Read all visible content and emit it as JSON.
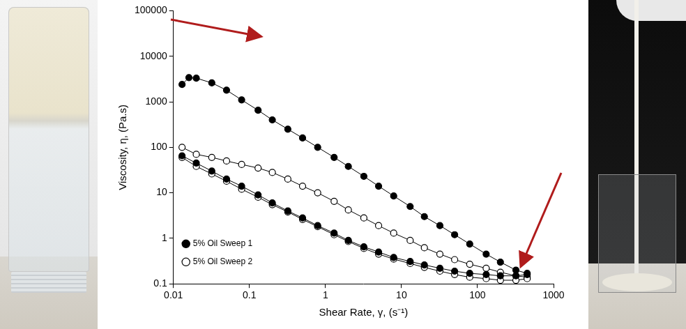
{
  "chart_data": {
    "type": "scatter",
    "x_label": "Shear Rate, γ, (s⁻¹)",
    "y_label": "Viscosity, η, (Pa.s)",
    "log": true,
    "xlim": [
      0.01,
      1000
    ],
    "ylim": [
      0.1,
      100000
    ],
    "xticks": [
      0.01,
      0.1,
      1,
      10,
      100,
      1000
    ],
    "yticks": [
      0.1,
      1,
      10,
      100,
      1000,
      10000,
      100000
    ],
    "grid": false,
    "legend": "upper right",
    "series": [
      {
        "name": "5% Oil Sweep 1",
        "color": "#000000",
        "marker": "filled_circle",
        "line_style": "solid",
        "x": [
          0.013,
          0.016,
          0.02,
          0.032,
          0.05,
          0.079,
          0.13,
          0.2,
          0.32,
          0.5,
          0.79,
          1.3,
          2,
          3.2,
          5,
          7.9,
          13,
          20,
          32,
          50,
          79,
          130,
          200,
          320,
          450,
          450,
          320,
          200,
          130,
          79,
          50,
          32,
          20,
          13,
          7.9,
          5,
          3.2,
          2,
          1.3,
          0.79,
          0.5,
          0.32,
          0.2,
          0.13,
          0.079,
          0.05,
          0.032,
          0.02,
          0.013
        ],
        "values": [
          2400,
          3400,
          3300,
          2600,
          1800,
          1100,
          650,
          400,
          250,
          160,
          100,
          60,
          38,
          23,
          14,
          8.5,
          5,
          3,
          1.9,
          1.2,
          0.75,
          0.45,
          0.3,
          0.2,
          0.17,
          0.16,
          0.15,
          0.15,
          0.16,
          0.17,
          0.19,
          0.22,
          0.26,
          0.31,
          0.38,
          0.5,
          0.65,
          0.9,
          1.3,
          1.9,
          2.8,
          4,
          6,
          9,
          14,
          20,
          30,
          45,
          65
        ]
      },
      {
        "name": "5% Oil Sweep 2",
        "color": "#000000",
        "marker": "open_circle",
        "line_style": "solid",
        "x": [
          0.013,
          0.02,
          0.032,
          0.05,
          0.079,
          0.13,
          0.2,
          0.32,
          0.5,
          0.79,
          1.3,
          2,
          3.2,
          5,
          7.9,
          13,
          20,
          32,
          50,
          79,
          130,
          200,
          320,
          450,
          450,
          320,
          200,
          130,
          79,
          50,
          32,
          20,
          13,
          7.9,
          5,
          3.2,
          2,
          1.3,
          0.79,
          0.5,
          0.32,
          0.2,
          0.13,
          0.079,
          0.05,
          0.032,
          0.02,
          0.013
        ],
        "values": [
          100,
          70,
          60,
          50,
          42,
          35,
          28,
          20,
          14,
          10,
          6.5,
          4.2,
          2.8,
          1.9,
          1.3,
          0.9,
          0.62,
          0.45,
          0.34,
          0.27,
          0.22,
          0.18,
          0.15,
          0.14,
          0.13,
          0.12,
          0.12,
          0.13,
          0.14,
          0.16,
          0.19,
          0.23,
          0.28,
          0.35,
          0.45,
          0.6,
          0.85,
          1.2,
          1.8,
          2.6,
          3.8,
          5.5,
          8,
          12,
          18,
          26,
          38,
          60
        ]
      }
    ]
  }
}
